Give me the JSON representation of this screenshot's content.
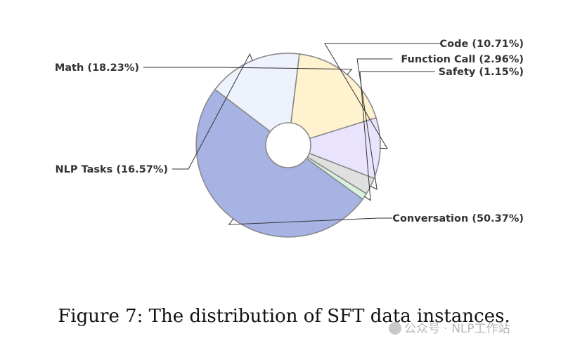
{
  "chart_data": {
    "type": "pie",
    "donut": true,
    "slices": [
      {
        "label": "Conversation (50.37%)",
        "value": 50.37,
        "color": "#a7b3e3"
      },
      {
        "label": "NLP Tasks (16.57%)",
        "value": 16.57,
        "color": "#edf2fc"
      },
      {
        "label": "Math (18.23%)",
        "value": 18.23,
        "color": "#fff2cf"
      },
      {
        "label": "Code (10.71%)",
        "value": 10.71,
        "color": "#e9e3fd"
      },
      {
        "label": "Function Call (2.96%)",
        "value": 2.96,
        "color": "#e0e0e0"
      },
      {
        "label": "Safety (1.15%)",
        "value": 1.15,
        "color": "#d9f2df"
      }
    ],
    "legend": "none"
  },
  "caption": "Figure 7: The distribution of SFT data instances.",
  "watermark": "公众号 · NLP工作站"
}
